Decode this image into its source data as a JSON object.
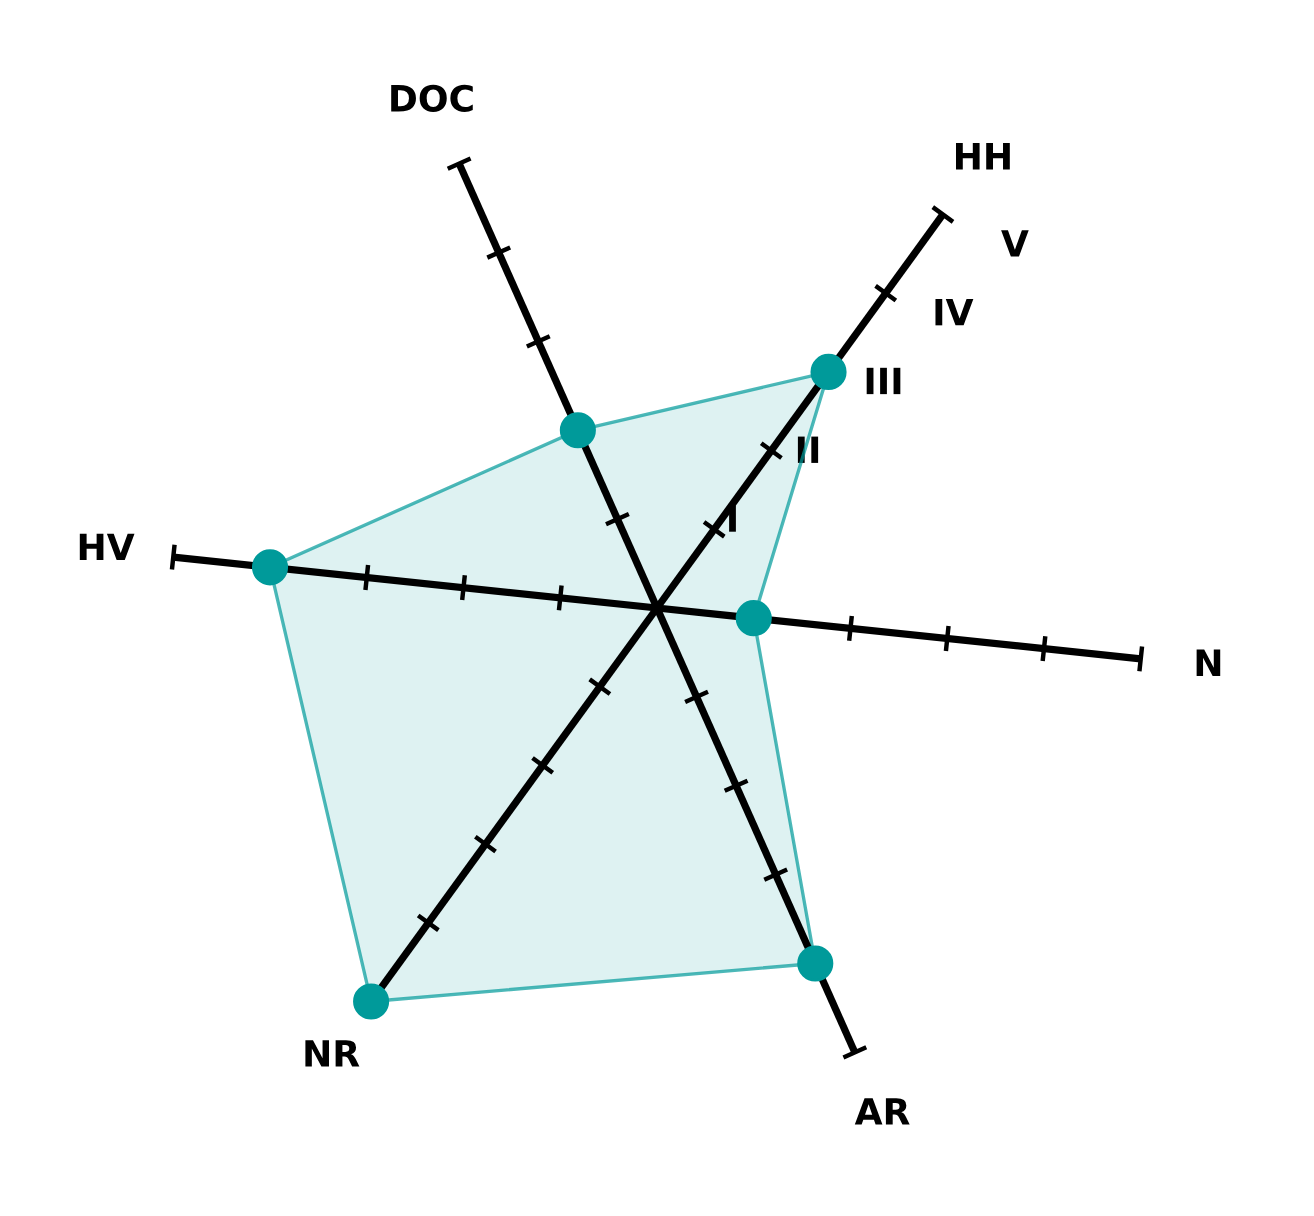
{
  "chart_data": {
    "type": "radar",
    "categories": [
      "HH",
      "N",
      "AR",
      "NR",
      "HV",
      "DOC"
    ],
    "series": [
      {
        "color": "#009a9a",
        "values": [
          3,
          1,
          4,
          5,
          4,
          2
        ]
      }
    ],
    "ylim": [
      0,
      5
    ],
    "yticks": [
      {
        "value": 1,
        "label": "I"
      },
      {
        "value": 2,
        "label": "II"
      },
      {
        "value": 3,
        "label": "III"
      },
      {
        "value": 4,
        "label": "IV"
      },
      {
        "value": 5,
        "label": "V"
      }
    ],
    "grid": false,
    "marker": "circle"
  }
}
